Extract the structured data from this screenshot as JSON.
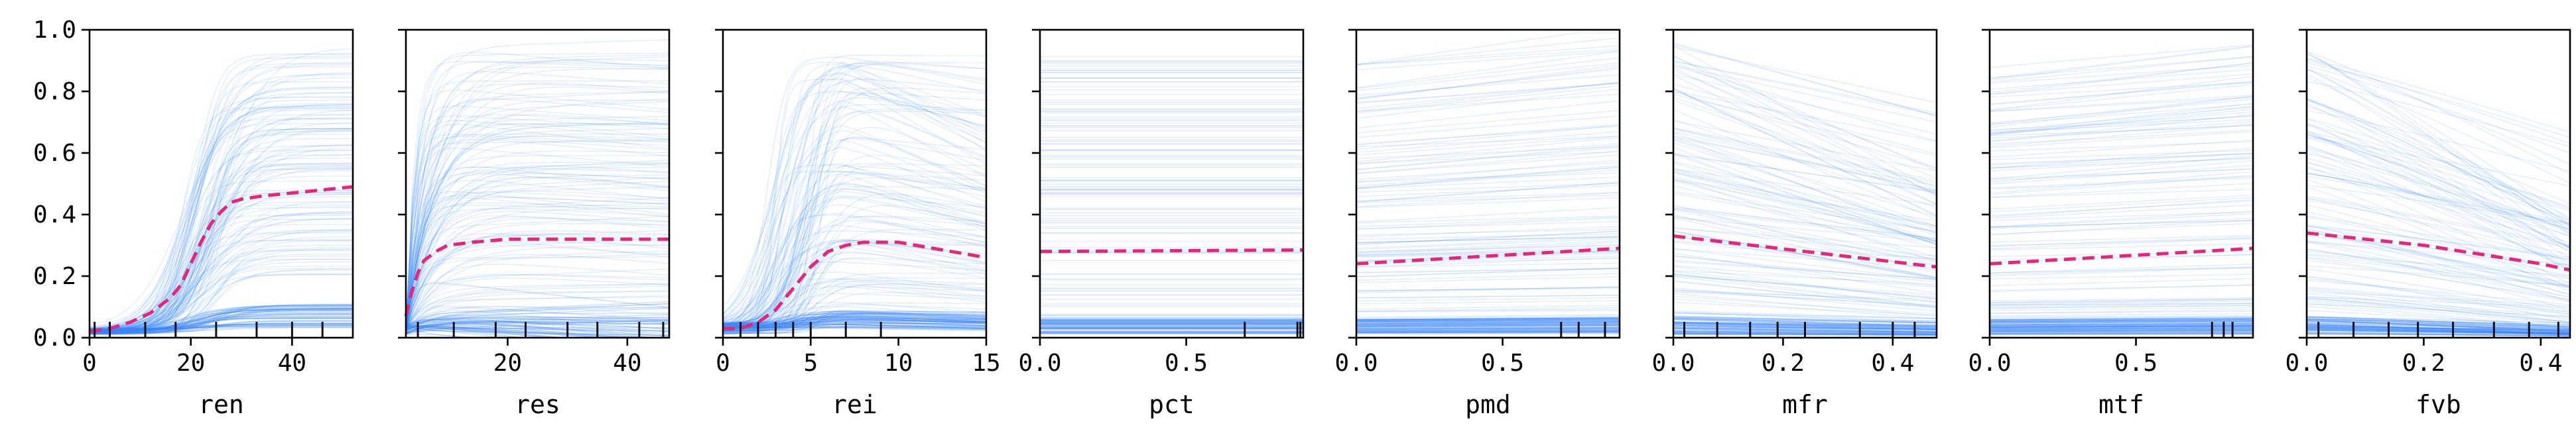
{
  "chart_data": {
    "type": "line",
    "description_kind": "ice-plots",
    "shared_y": {
      "ylim": [
        0,
        1
      ],
      "ticks": [
        "0.0",
        "0.2",
        "0.4",
        "0.6",
        "0.8",
        "1.0"
      ]
    },
    "colors": {
      "ice": "#3a86ff",
      "pd": "#e6267a",
      "rug": "#111111",
      "frame": "#000000"
    },
    "panels": [
      {
        "xlabel": "ren",
        "xlim": [
          0,
          52
        ],
        "xticks": [
          {
            "v": 0,
            "t": "0"
          },
          {
            "v": 20,
            "t": "20"
          },
          {
            "v": 40,
            "t": "40"
          }
        ],
        "ice_shape": "sigmoid",
        "ice_center": 22,
        "ice_width": 3.5,
        "pd": {
          "x": [
            0,
            4,
            8,
            12,
            16,
            18,
            20,
            22,
            24,
            26,
            28,
            30,
            34,
            40,
            46,
            52
          ],
          "y": [
            0.02,
            0.03,
            0.05,
            0.08,
            0.13,
            0.17,
            0.24,
            0.31,
            0.37,
            0.41,
            0.44,
            0.45,
            0.46,
            0.47,
            0.48,
            0.49
          ]
        },
        "rug": [
          1,
          4,
          11,
          17,
          25,
          33,
          40,
          46
        ]
      },
      {
        "xlabel": "res",
        "xlim": [
          3,
          47
        ],
        "xticks": [
          {
            "v": 20,
            "t": "20"
          },
          {
            "v": 40,
            "t": "40"
          }
        ],
        "ice_shape": "rise_saturate",
        "ice_center": 4,
        "ice_width": 4,
        "pd": {
          "x": [
            3,
            4,
            5,
            6,
            8,
            10,
            14,
            20,
            30,
            40,
            47
          ],
          "y": [
            0.07,
            0.15,
            0.21,
            0.25,
            0.28,
            0.3,
            0.31,
            0.32,
            0.32,
            0.32,
            0.32
          ]
        },
        "rug": [
          5,
          11,
          18,
          23,
          30,
          35,
          42,
          46
        ]
      },
      {
        "xlabel": "rei",
        "xlim": [
          0,
          15
        ],
        "xticks": [
          {
            "v": 0,
            "t": "0"
          },
          {
            "v": 5,
            "t": "5"
          },
          {
            "v": 10,
            "t": "10"
          },
          {
            "v": 15,
            "t": "15"
          }
        ],
        "ice_shape": "sigmoid_decay",
        "ice_center": 4,
        "ice_width": 0.7,
        "pd": {
          "x": [
            0,
            1,
            2,
            3,
            4,
            5,
            6,
            7,
            8,
            9,
            10,
            11,
            12,
            13,
            14,
            15
          ],
          "y": [
            0.03,
            0.03,
            0.05,
            0.09,
            0.16,
            0.23,
            0.28,
            0.3,
            0.31,
            0.31,
            0.31,
            0.3,
            0.29,
            0.28,
            0.27,
            0.26
          ]
        },
        "rug": [
          1,
          2,
          3,
          4,
          5,
          7,
          9
        ]
      },
      {
        "xlabel": "pct",
        "xlim": [
          0,
          0.9
        ],
        "xticks": [
          {
            "v": 0,
            "t": "0.0"
          },
          {
            "v": 0.5,
            "t": "0.5"
          }
        ],
        "ice_shape": "flat",
        "pd": {
          "x": [
            0,
            0.9
          ],
          "y": [
            0.28,
            0.285
          ]
        },
        "rug": [
          0.7,
          0.88,
          0.89
        ]
      },
      {
        "xlabel": "pmd",
        "xlim": [
          0,
          0.9
        ],
        "xticks": [
          {
            "v": 0,
            "t": "0.0"
          },
          {
            "v": 0.5,
            "t": "0.5"
          }
        ],
        "ice_shape": "linear_up",
        "pd": {
          "x": [
            0,
            0.9
          ],
          "y": [
            0.24,
            0.29
          ]
        },
        "rug": [
          0.7,
          0.76,
          0.85
        ]
      },
      {
        "xlabel": "mfr",
        "xlim": [
          0,
          0.48
        ],
        "xticks": [
          {
            "v": 0,
            "t": "0.0"
          },
          {
            "v": 0.2,
            "t": "0.2"
          },
          {
            "v": 0.4,
            "t": "0.4"
          }
        ],
        "ice_shape": "linear_down",
        "pd": {
          "x": [
            0,
            0.48
          ],
          "y": [
            0.33,
            0.23
          ]
        },
        "rug": [
          0.02,
          0.08,
          0.14,
          0.19,
          0.24,
          0.34,
          0.4,
          0.44
        ]
      },
      {
        "xlabel": "mtf",
        "xlim": [
          0,
          0.9
        ],
        "xticks": [
          {
            "v": 0,
            "t": "0.0"
          },
          {
            "v": 0.5,
            "t": "0.5"
          }
        ],
        "ice_shape": "linear_up",
        "pd": {
          "x": [
            0,
            0.9
          ],
          "y": [
            0.24,
            0.29
          ]
        },
        "rug": [
          0.76,
          0.8,
          0.83
        ]
      },
      {
        "xlabel": "fvb",
        "xlim": [
          0,
          0.45
        ],
        "xticks": [
          {
            "v": 0,
            "t": "0.0"
          },
          {
            "v": 0.2,
            "t": "0.2"
          },
          {
            "v": 0.4,
            "t": "0.4"
          }
        ],
        "ice_shape": "decline",
        "pd": {
          "x": [
            0,
            0.1,
            0.2,
            0.3,
            0.4,
            0.45
          ],
          "y": [
            0.34,
            0.32,
            0.3,
            0.27,
            0.24,
            0.22
          ]
        },
        "rug": [
          0.02,
          0.08,
          0.14,
          0.19,
          0.25,
          0.32,
          0.38,
          0.43
        ]
      }
    ]
  }
}
